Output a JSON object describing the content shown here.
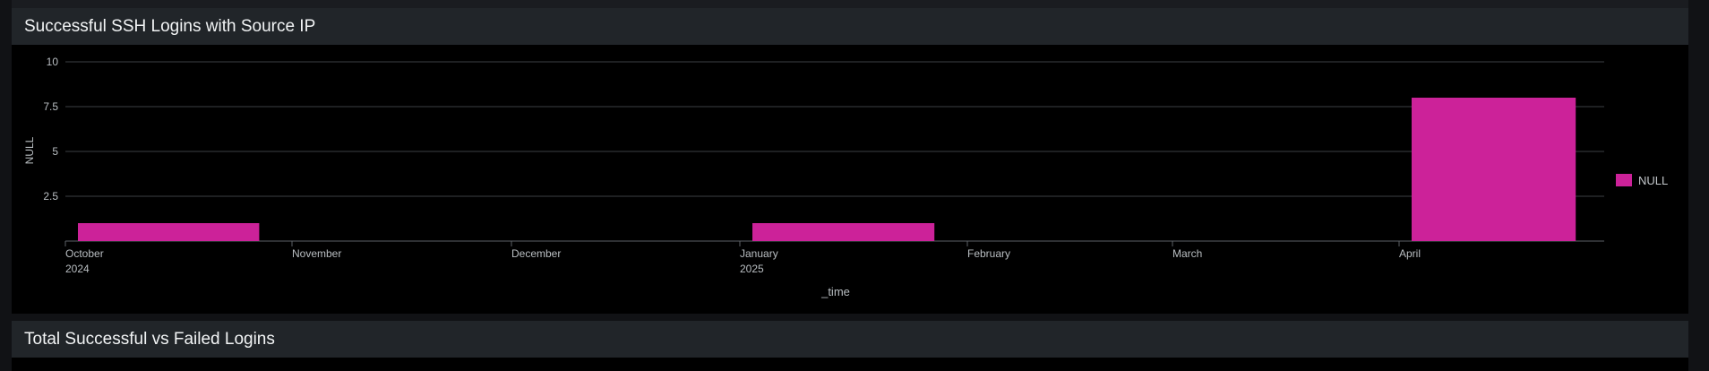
{
  "panels": [
    {
      "title": "Successful SSH Logins with Source IP"
    },
    {
      "title": "Total Successful vs Failed Logins"
    }
  ],
  "chart_data": {
    "type": "bar",
    "title": "Successful SSH Logins with Source IP",
    "xlabel": "_time",
    "ylabel": "NULL",
    "ylim": [
      0,
      10
    ],
    "y_ticks": [
      "2.5",
      "5",
      "7.5",
      "10"
    ],
    "x_ticks": [
      {
        "line1": "October",
        "line2": "2024"
      },
      {
        "line1": "November",
        "line2": ""
      },
      {
        "line1": "December",
        "line2": ""
      },
      {
        "line1": "January",
        "line2": "2025"
      },
      {
        "line1": "February",
        "line2": ""
      },
      {
        "line1": "March",
        "line2": ""
      },
      {
        "line1": "April",
        "line2": ""
      }
    ],
    "categories": [
      "October 2024",
      "January 2025",
      "April 2025"
    ],
    "series": [
      {
        "name": "NULL",
        "color": "#cc2299",
        "values": [
          1,
          1,
          8
        ]
      }
    ],
    "grid": true,
    "legend_position": "right"
  }
}
